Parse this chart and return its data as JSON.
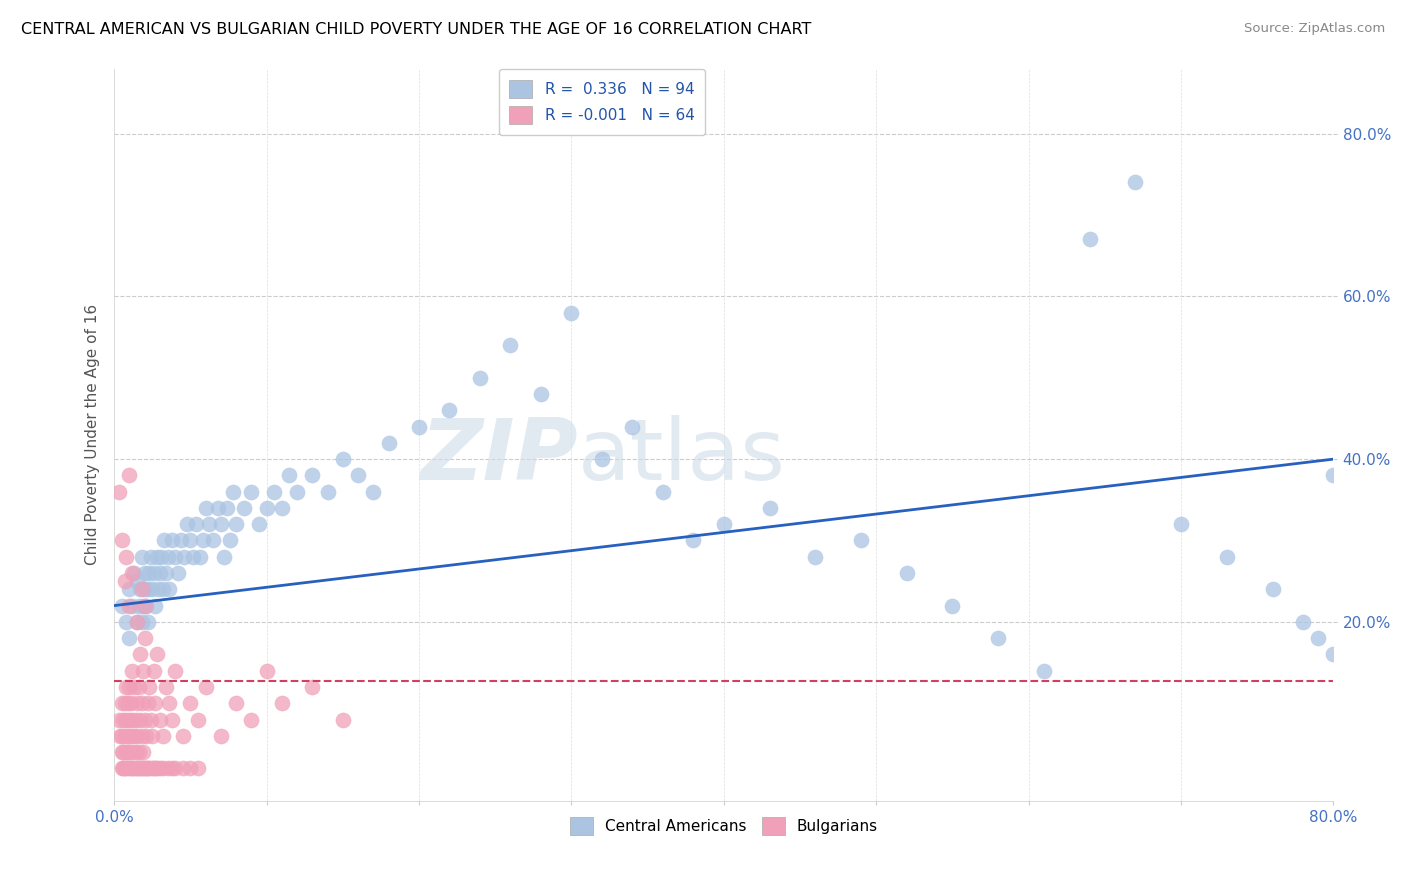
{
  "title": "CENTRAL AMERICAN VS BULGARIAN CHILD POVERTY UNDER THE AGE OF 16 CORRELATION CHART",
  "source": "Source: ZipAtlas.com",
  "ylabel": "Child Poverty Under the Age of 16",
  "r_central": 0.336,
  "n_central": 94,
  "r_bulgarian": -0.001,
  "n_bulgarian": 64,
  "ytick_labels": [
    "20.0%",
    "40.0%",
    "60.0%",
    "80.0%"
  ],
  "ytick_values": [
    0.2,
    0.4,
    0.6,
    0.8
  ],
  "xlim": [
    0.0,
    0.8
  ],
  "ylim": [
    -0.02,
    0.88
  ],
  "legend_labels": [
    "Central Americans",
    "Bulgarians"
  ],
  "blue_color": "#aac4e2",
  "pink_color": "#f0a0b8",
  "blue_line_color": "#2860c0",
  "pink_line_color": "#d04060",
  "watermark_zip": "ZIP",
  "watermark_atlas": "atlas",
  "ca_x": [
    0.005,
    0.008,
    0.01,
    0.01,
    0.012,
    0.013,
    0.015,
    0.015,
    0.016,
    0.017,
    0.018,
    0.018,
    0.019,
    0.02,
    0.02,
    0.021,
    0.022,
    0.022,
    0.023,
    0.024,
    0.025,
    0.026,
    0.027,
    0.028,
    0.029,
    0.03,
    0.031,
    0.032,
    0.033,
    0.034,
    0.035,
    0.036,
    0.038,
    0.04,
    0.042,
    0.044,
    0.046,
    0.048,
    0.05,
    0.052,
    0.054,
    0.056,
    0.058,
    0.06,
    0.062,
    0.065,
    0.068,
    0.07,
    0.072,
    0.074,
    0.076,
    0.078,
    0.08,
    0.085,
    0.09,
    0.095,
    0.1,
    0.105,
    0.11,
    0.115,
    0.12,
    0.13,
    0.14,
    0.15,
    0.16,
    0.17,
    0.18,
    0.2,
    0.22,
    0.24,
    0.26,
    0.28,
    0.3,
    0.32,
    0.34,
    0.36,
    0.38,
    0.4,
    0.43,
    0.46,
    0.49,
    0.52,
    0.55,
    0.58,
    0.61,
    0.64,
    0.67,
    0.7,
    0.73,
    0.76,
    0.78,
    0.79,
    0.8,
    0.8
  ],
  "ca_y": [
    0.22,
    0.2,
    0.24,
    0.18,
    0.22,
    0.26,
    0.2,
    0.25,
    0.22,
    0.24,
    0.2,
    0.28,
    0.22,
    0.24,
    0.26,
    0.22,
    0.24,
    0.2,
    0.26,
    0.28,
    0.24,
    0.26,
    0.22,
    0.28,
    0.24,
    0.26,
    0.28,
    0.24,
    0.3,
    0.26,
    0.28,
    0.24,
    0.3,
    0.28,
    0.26,
    0.3,
    0.28,
    0.32,
    0.3,
    0.28,
    0.32,
    0.28,
    0.3,
    0.34,
    0.32,
    0.3,
    0.34,
    0.32,
    0.28,
    0.34,
    0.3,
    0.36,
    0.32,
    0.34,
    0.36,
    0.32,
    0.34,
    0.36,
    0.34,
    0.38,
    0.36,
    0.38,
    0.36,
    0.4,
    0.38,
    0.36,
    0.42,
    0.44,
    0.46,
    0.5,
    0.54,
    0.48,
    0.58,
    0.4,
    0.44,
    0.36,
    0.3,
    0.32,
    0.34,
    0.28,
    0.3,
    0.26,
    0.22,
    0.18,
    0.14,
    0.67,
    0.74,
    0.32,
    0.28,
    0.24,
    0.2,
    0.18,
    0.16,
    0.38
  ],
  "bu_x": [
    0.003,
    0.004,
    0.005,
    0.005,
    0.005,
    0.006,
    0.006,
    0.007,
    0.007,
    0.008,
    0.008,
    0.008,
    0.009,
    0.009,
    0.009,
    0.01,
    0.01,
    0.01,
    0.011,
    0.011,
    0.012,
    0.012,
    0.012,
    0.013,
    0.013,
    0.014,
    0.014,
    0.015,
    0.015,
    0.016,
    0.016,
    0.017,
    0.017,
    0.018,
    0.018,
    0.019,
    0.019,
    0.02,
    0.02,
    0.021,
    0.022,
    0.023,
    0.024,
    0.025,
    0.026,
    0.027,
    0.028,
    0.03,
    0.032,
    0.034,
    0.036,
    0.038,
    0.04,
    0.045,
    0.05,
    0.055,
    0.06,
    0.07,
    0.08,
    0.09,
    0.1,
    0.11,
    0.13,
    0.15
  ],
  "bu_y": [
    0.08,
    0.06,
    0.04,
    0.1,
    0.06,
    0.08,
    0.04,
    0.06,
    0.1,
    0.04,
    0.08,
    0.12,
    0.06,
    0.04,
    0.1,
    0.08,
    0.04,
    0.12,
    0.06,
    0.1,
    0.04,
    0.08,
    0.14,
    0.06,
    0.12,
    0.04,
    0.08,
    0.1,
    0.06,
    0.04,
    0.12,
    0.08,
    0.16,
    0.06,
    0.1,
    0.04,
    0.14,
    0.08,
    0.18,
    0.06,
    0.1,
    0.12,
    0.08,
    0.06,
    0.14,
    0.1,
    0.16,
    0.08,
    0.06,
    0.12,
    0.1,
    0.08,
    0.14,
    0.06,
    0.1,
    0.08,
    0.12,
    0.06,
    0.1,
    0.08,
    0.14,
    0.1,
    0.12,
    0.08
  ],
  "bu_extra_x": [
    0.005,
    0.01,
    0.012,
    0.014,
    0.008,
    0.016,
    0.02,
    0.025,
    0.028,
    0.032,
    0.038,
    0.045,
    0.015,
    0.018,
    0.022,
    0.026,
    0.03,
    0.035,
    0.04,
    0.05,
    0.055,
    0.006,
    0.007,
    0.011,
    0.013,
    0.017,
    0.019,
    0.021,
    0.023,
    0.027
  ],
  "bu_extra_y": [
    0.02,
    0.02,
    0.02,
    0.02,
    0.02,
    0.02,
    0.02,
    0.02,
    0.02,
    0.02,
    0.02,
    0.02,
    0.02,
    0.02,
    0.02,
    0.02,
    0.02,
    0.02,
    0.02,
    0.02,
    0.02,
    0.02,
    0.02,
    0.02,
    0.02,
    0.02,
    0.02,
    0.02,
    0.02,
    0.02
  ],
  "bu_high_x": [
    0.003,
    0.005,
    0.007,
    0.008,
    0.01,
    0.012,
    0.015,
    0.018,
    0.02,
    0.01
  ],
  "bu_high_y": [
    0.36,
    0.3,
    0.25,
    0.28,
    0.22,
    0.26,
    0.2,
    0.24,
    0.22,
    0.38
  ]
}
